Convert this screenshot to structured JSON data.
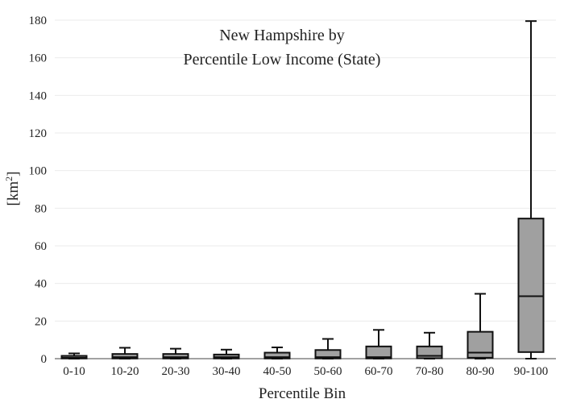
{
  "chart_data": {
    "type": "box",
    "title_line1": "New Hampshire  by",
    "title_line2": "Percentile Low Income (State)",
    "xlabel": "Percentile Bin",
    "ylabel_base": "[km",
    "ylabel_sup": "2",
    "ylabel_end": "]",
    "ylim": [
      0,
      180
    ],
    "yticks": [
      0,
      20,
      40,
      60,
      80,
      100,
      120,
      140,
      160,
      180
    ],
    "grid": true,
    "categories": [
      "0-10",
      "10-20",
      "20-30",
      "30-40",
      "40-50",
      "50-60",
      "60-70",
      "70-80",
      "80-90",
      "90-100"
    ],
    "boxes": [
      {
        "whisker_low": 0,
        "q1": 0.1,
        "median": 0.5,
        "q3": 1.5,
        "whisker_high": 2.8
      },
      {
        "whisker_low": 0,
        "q1": 0.1,
        "median": 0.8,
        "q3": 2.5,
        "whisker_high": 5.8
      },
      {
        "whisker_low": 0,
        "q1": 0.1,
        "median": 0.8,
        "q3": 2.5,
        "whisker_high": 5.3
      },
      {
        "whisker_low": 0,
        "q1": 0.1,
        "median": 0.8,
        "q3": 2.2,
        "whisker_high": 4.8
      },
      {
        "whisker_low": 0,
        "q1": 0.1,
        "median": 0.8,
        "q3": 3.2,
        "whisker_high": 6.0
      },
      {
        "whisker_low": 0,
        "q1": 0.1,
        "median": 0.8,
        "q3": 4.6,
        "whisker_high": 10.5
      },
      {
        "whisker_low": 0,
        "q1": 0.1,
        "median": 0.8,
        "q3": 6.5,
        "whisker_high": 15.3
      },
      {
        "whisker_low": 0,
        "q1": 0.2,
        "median": 1.5,
        "q3": 6.5,
        "whisker_high": 13.8
      },
      {
        "whisker_low": 0,
        "q1": 0.5,
        "median": 3.2,
        "q3": 14.3,
        "whisker_high": 34.5
      },
      {
        "whisker_low": 0,
        "q1": 3.5,
        "median": 33.2,
        "q3": 74.5,
        "whisker_high": 179.5
      }
    ],
    "colors": {
      "box_fill": "#a0a0a0",
      "box_stroke": "#111111",
      "grid": "#ebebeb"
    }
  }
}
